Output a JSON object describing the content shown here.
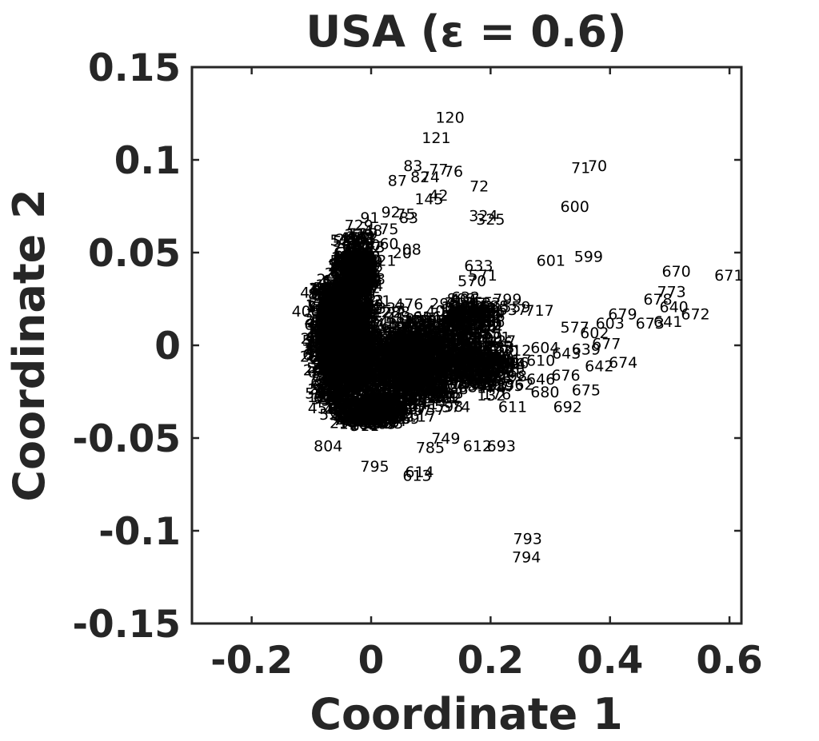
{
  "chart_data": {
    "type": "scatter",
    "title": "USA (ε = 0.6)",
    "xlabel": "Coordinate 1",
    "ylabel": "Coordinate 2",
    "xlim": [
      -0.3,
      0.62
    ],
    "ylim": [
      -0.15,
      0.15
    ],
    "xticks": [
      -0.2,
      0,
      0.2,
      0.4,
      0.6
    ],
    "xtick_labels": [
      "-0.2",
      "0",
      "0.2",
      "0.4",
      "0.6"
    ],
    "yticks": [
      -0.15,
      -0.1,
      -0.05,
      0,
      0.05,
      0.1,
      0.15
    ],
    "ytick_labels": [
      "-0.15",
      "-0.1",
      "-0.05",
      "0",
      "0.05",
      "0.1",
      "0.15"
    ],
    "grid": false,
    "marker": "text-label",
    "points": [
      {
        "label": "120",
        "x": 0.132,
        "y": 0.123
      },
      {
        "label": "121",
        "x": 0.109,
        "y": 0.112
      },
      {
        "label": "83",
        "x": 0.07,
        "y": 0.097
      },
      {
        "label": "77",
        "x": 0.113,
        "y": 0.095
      },
      {
        "label": "76",
        "x": 0.138,
        "y": 0.094
      },
      {
        "label": "71",
        "x": 0.351,
        "y": 0.096
      },
      {
        "label": "70",
        "x": 0.379,
        "y": 0.097
      },
      {
        "label": "87",
        "x": 0.044,
        "y": 0.089
      },
      {
        "label": "82",
        "x": 0.082,
        "y": 0.091
      },
      {
        "label": "74",
        "x": 0.099,
        "y": 0.091
      },
      {
        "label": "72",
        "x": 0.181,
        "y": 0.086
      },
      {
        "label": "42",
        "x": 0.113,
        "y": 0.081
      },
      {
        "label": "145",
        "x": 0.097,
        "y": 0.079
      },
      {
        "label": "600",
        "x": 0.341,
        "y": 0.075
      },
      {
        "label": "92",
        "x": 0.033,
        "y": 0.072
      },
      {
        "label": "75",
        "x": 0.058,
        "y": 0.071
      },
      {
        "label": "91",
        "x": -0.002,
        "y": 0.069
      },
      {
        "label": "83",
        "x": 0.063,
        "y": 0.069
      },
      {
        "label": "324",
        "x": 0.188,
        "y": 0.07
      },
      {
        "label": "325",
        "x": 0.2,
        "y": 0.068
      },
      {
        "label": "48",
        "x": 0.003,
        "y": 0.062
      },
      {
        "label": "75",
        "x": 0.03,
        "y": 0.063
      },
      {
        "label": "60",
        "x": 0.03,
        "y": 0.055
      },
      {
        "label": "20",
        "x": 0.052,
        "y": 0.05
      },
      {
        "label": "08",
        "x": 0.068,
        "y": 0.052
      },
      {
        "label": "21",
        "x": 0.026,
        "y": 0.046
      },
      {
        "label": "601",
        "x": 0.301,
        "y": 0.046
      },
      {
        "label": "599",
        "x": 0.364,
        "y": 0.048
      },
      {
        "label": "633",
        "x": 0.18,
        "y": 0.043
      },
      {
        "label": "571",
        "x": 0.187,
        "y": 0.038
      },
      {
        "label": "570",
        "x": 0.169,
        "y": 0.035
      },
      {
        "label": "670",
        "x": 0.511,
        "y": 0.04
      },
      {
        "label": "671",
        "x": 0.599,
        "y": 0.038
      },
      {
        "label": "773",
        "x": 0.503,
        "y": 0.029
      },
      {
        "label": "678",
        "x": 0.48,
        "y": 0.025
      },
      {
        "label": "640",
        "x": 0.507,
        "y": 0.021
      },
      {
        "label": "672",
        "x": 0.543,
        "y": 0.017
      },
      {
        "label": "679",
        "x": 0.421,
        "y": 0.017
      },
      {
        "label": "603",
        "x": 0.4,
        "y": 0.012
      },
      {
        "label": "673",
        "x": 0.467,
        "y": 0.012
      },
      {
        "label": "641",
        "x": 0.497,
        "y": 0.013
      },
      {
        "label": "632",
        "x": 0.158,
        "y": 0.026
      },
      {
        "label": "799",
        "x": 0.228,
        "y": 0.025
      },
      {
        "label": "717",
        "x": 0.282,
        "y": 0.019
      },
      {
        "label": "706",
        "x": 0.2,
        "y": 0.013
      },
      {
        "label": "559",
        "x": 0.243,
        "y": 0.021
      },
      {
        "label": "577",
        "x": 0.341,
        "y": 0.01
      },
      {
        "label": "602",
        "x": 0.374,
        "y": 0.007
      },
      {
        "label": "677",
        "x": 0.394,
        "y": 0.001
      },
      {
        "label": "639",
        "x": 0.36,
        "y": -0.002
      },
      {
        "label": "643",
        "x": 0.327,
        "y": -0.004
      },
      {
        "label": "604",
        "x": 0.291,
        "y": -0.001
      },
      {
        "label": "610",
        "x": 0.284,
        "y": -0.008
      },
      {
        "label": "642",
        "x": 0.382,
        "y": -0.011
      },
      {
        "label": "674",
        "x": 0.422,
        "y": -0.009
      },
      {
        "label": "676",
        "x": 0.326,
        "y": -0.016
      },
      {
        "label": "646",
        "x": 0.284,
        "y": -0.018
      },
      {
        "label": "675",
        "x": 0.36,
        "y": -0.024
      },
      {
        "label": "680",
        "x": 0.291,
        "y": -0.025
      },
      {
        "label": "692",
        "x": 0.329,
        "y": -0.033
      },
      {
        "label": "611",
        "x": 0.237,
        "y": -0.033
      },
      {
        "label": "612",
        "x": 0.178,
        "y": -0.054
      },
      {
        "label": "693",
        "x": 0.218,
        "y": -0.054
      },
      {
        "label": "749",
        "x": 0.125,
        "y": -0.05
      },
      {
        "label": "785",
        "x": 0.099,
        "y": -0.055
      },
      {
        "label": "804",
        "x": -0.072,
        "y": -0.054
      },
      {
        "label": "795",
        "x": 0.006,
        "y": -0.065
      },
      {
        "label": "614",
        "x": 0.081,
        "y": -0.068
      },
      {
        "label": "613",
        "x": 0.077,
        "y": -0.07
      },
      {
        "label": "793",
        "x": 0.262,
        "y": -0.104
      },
      {
        "label": "794",
        "x": 0.26,
        "y": -0.114
      }
    ]
  }
}
